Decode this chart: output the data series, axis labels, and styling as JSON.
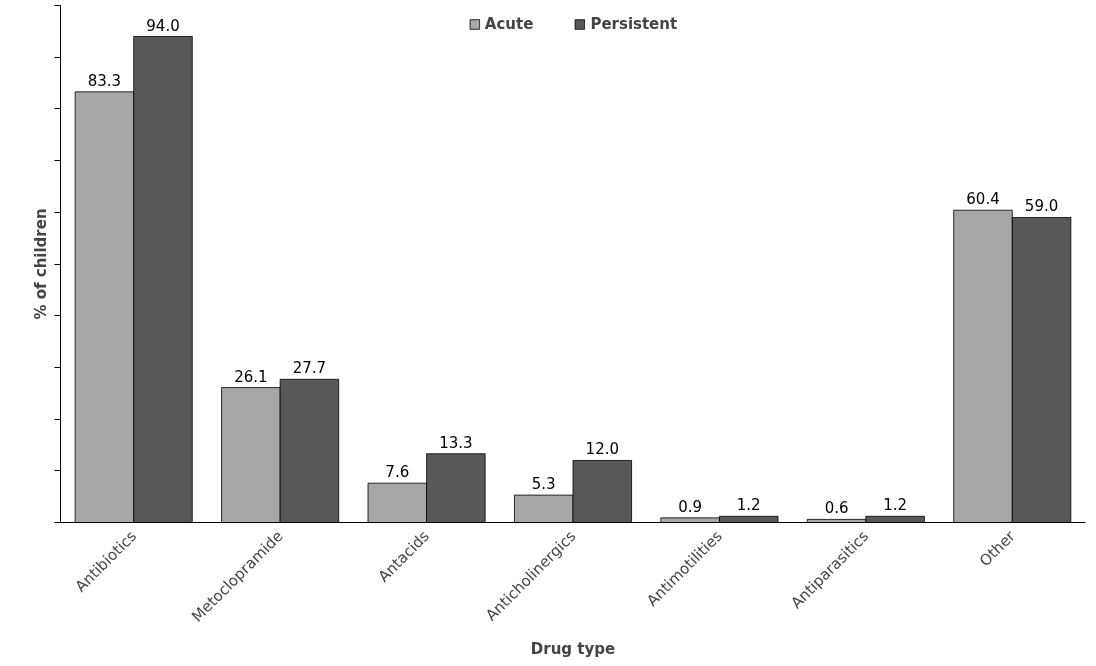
{
  "chart_data": {
    "type": "bar",
    "xlabel": "Drug type",
    "ylabel": "% of children",
    "categories": [
      "Antibiotics",
      "Metoclopramide",
      "Antacids",
      "Anticholinergics",
      "Antimotilities",
      "Antiparasitics",
      "Other"
    ],
    "series": [
      {
        "name": "Acute",
        "color": "#a7a7aa",
        "values": [
          83.3,
          26.1,
          7.6,
          5.3,
          0.9,
          0.6,
          60.4
        ],
        "value_labels": [
          "83.3",
          "26.1",
          "7.6",
          "5.3",
          "0.9",
          "0.6",
          "60.4"
        ]
      },
      {
        "name": "Persistent",
        "color": "#58585b",
        "values": [
          94.0,
          27.7,
          13.3,
          12.0,
          1.2,
          1.2,
          59.0
        ],
        "value_labels": [
          "94.0",
          "27.7",
          "13.3",
          "12.0",
          "1.2",
          "1.2",
          "59.0"
        ]
      }
    ],
    "ylim": [
      0,
      100
    ],
    "yticks": [
      {
        "value": 0,
        "label": null
      },
      {
        "value": 10,
        "label": null
      },
      {
        "value": 20,
        "label": null
      },
      {
        "value": 30,
        "label": null
      },
      {
        "value": 40,
        "label": null
      },
      {
        "value": 50,
        "label": null
      },
      {
        "value": 60,
        "label": null
      },
      {
        "value": 70,
        "label": null
      },
      {
        "value": 80,
        "label": null
      },
      {
        "value": 90,
        "label": null
      },
      {
        "value": 100,
        "label": null
      }
    ],
    "tick_labels": "x",
    "legend": "top",
    "grid": false
  }
}
